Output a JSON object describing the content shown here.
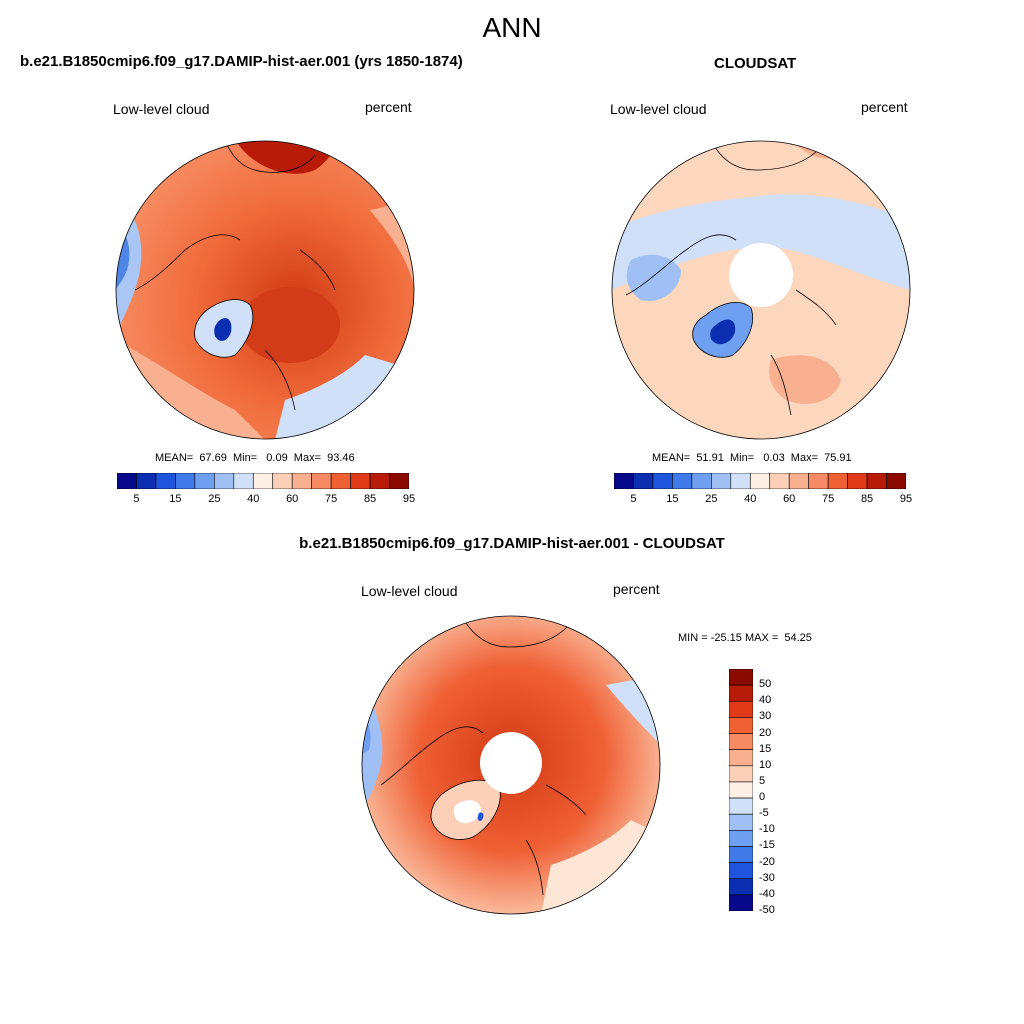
{
  "main_title": "ANN",
  "panels": [
    {
      "title": "b.e21.B1850cmip6.f09_g17.DAMIP-hist-aer.001 (yrs 1850-1874)",
      "variable": "Low-level cloud",
      "units": "percent",
      "stats": "MEAN=  67.69  Min=   0.09  Max=  93.46",
      "colorbar_labels": [
        "5",
        "15",
        "25",
        "40",
        "60",
        "75",
        "85",
        "95"
      ]
    },
    {
      "title": "CLOUDSAT",
      "variable": "Low-level cloud",
      "units": "percent",
      "stats": "MEAN=  51.91  Min=   0.03  Max=  75.91",
      "colorbar_labels": [
        "5",
        "15",
        "25",
        "40",
        "60",
        "75",
        "85",
        "95"
      ]
    },
    {
      "title": "b.e21.B1850cmip6.f09_g17.DAMIP-hist-aer.001 - CLOUDSAT",
      "variable": "Low-level cloud",
      "units": "percent",
      "stats": "MIN = -25.15 MAX =  54.25",
      "colorbar_labels": [
        "50",
        "40",
        "30",
        "20",
        "15",
        "10",
        "5",
        "0",
        "-5",
        "-10",
        "-15",
        "-20",
        "-30",
        "-40",
        "-50"
      ]
    }
  ],
  "colors": {
    "abs_scale": [
      "#08088a",
      "#0b2fb0",
      "#1f55dd",
      "#3f7ae8",
      "#6e9ff0",
      "#a0c0f5",
      "#cfe0f8",
      "#fff0e6",
      "#fcd0b8",
      "#f9b090",
      "#f58a65",
      "#ef6035",
      "#e03a18",
      "#b81c08",
      "#8b0a00"
    ],
    "diff_scale": [
      "#8b0a00",
      "#b81c08",
      "#e03a18",
      "#ef6035",
      "#f58a65",
      "#f9b090",
      "#fcd0b8",
      "#fff0e6",
      "#cfe0f8",
      "#a0c0f5",
      "#6e9ff0",
      "#3f7ae8",
      "#1f55dd",
      "#0b2fb0",
      "#08088a"
    ],
    "coast": "#000000",
    "missing": "#ffffff"
  }
}
